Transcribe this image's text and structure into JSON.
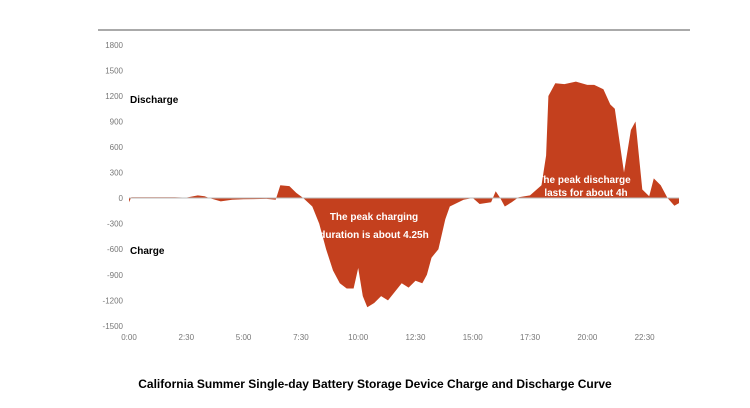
{
  "chart_data": {
    "type": "area",
    "title": "California Summer Single-day Battery Storage Device Charge and Discharge Curve",
    "xlabel": "",
    "ylabel": "",
    "xlim": [
      0,
      24
    ],
    "ylim": [
      -1500,
      1800
    ],
    "x_ticks": [
      "0:00",
      "2:30",
      "5:00",
      "7:30",
      "10:00",
      "12:30",
      "15:00",
      "17:30",
      "20:00",
      "22:30"
    ],
    "y_ticks": [
      "1800",
      "1500",
      "1200",
      "900",
      "600",
      "300",
      "0",
      "-300",
      "-600",
      "-900",
      "-1200",
      "-1500"
    ],
    "grid": false,
    "color": "#c4401e",
    "side_labels": {
      "discharge": "Discharge",
      "charge": "Charge"
    },
    "annotations": {
      "charging": [
        "The peak charging",
        "duration is about 4.25h"
      ],
      "discharge": [
        "The peak discharge",
        "lasts for about 4h"
      ]
    },
    "series": [
      {
        "x": [
          0,
          0.1,
          1,
          2,
          2.5,
          3,
          3.3,
          3.5,
          4,
          4.5,
          5,
          6,
          6.4,
          6.6,
          7.0,
          7.3,
          7.6,
          8.0,
          8.3,
          8.6,
          8.9,
          9.2,
          9.5,
          9.8,
          10.0,
          10.2,
          10.4,
          10.7,
          11.0,
          11.3,
          11.6,
          11.9,
          12.2,
          12.5,
          12.8,
          13.0,
          13.2,
          13.5,
          13.8,
          14.0,
          14.3,
          14.6,
          15.0,
          15.3,
          15.8,
          16.0,
          16.2,
          16.4,
          16.7,
          17.0,
          17.5,
          18.0,
          18.2,
          18.3,
          18.6,
          19.0,
          19.5,
          20.0,
          20.3,
          20.7,
          21.0,
          21.2,
          21.6,
          21.9,
          22.1,
          22.4,
          22.7,
          22.9,
          23.2,
          23.5,
          23.8,
          24
        ],
        "y": [
          -50,
          10,
          10,
          10,
          5,
          30,
          20,
          0,
          -40,
          -20,
          -15,
          -10,
          -20,
          150,
          140,
          60,
          0,
          -100,
          -300,
          -600,
          -850,
          -1000,
          -1060,
          -1060,
          -820,
          -1150,
          -1280,
          -1230,
          -1150,
          -1200,
          -1100,
          -1000,
          -1050,
          -970,
          -1000,
          -900,
          -700,
          -600,
          -250,
          -100,
          -60,
          -20,
          0,
          -70,
          -50,
          80,
          0,
          -100,
          -50,
          10,
          30,
          150,
          500,
          1200,
          1350,
          1340,
          1370,
          1330,
          1330,
          1280,
          1100,
          1050,
          300,
          800,
          900,
          100,
          20,
          230,
          150,
          0,
          -90,
          -60
        ]
      }
    ]
  }
}
